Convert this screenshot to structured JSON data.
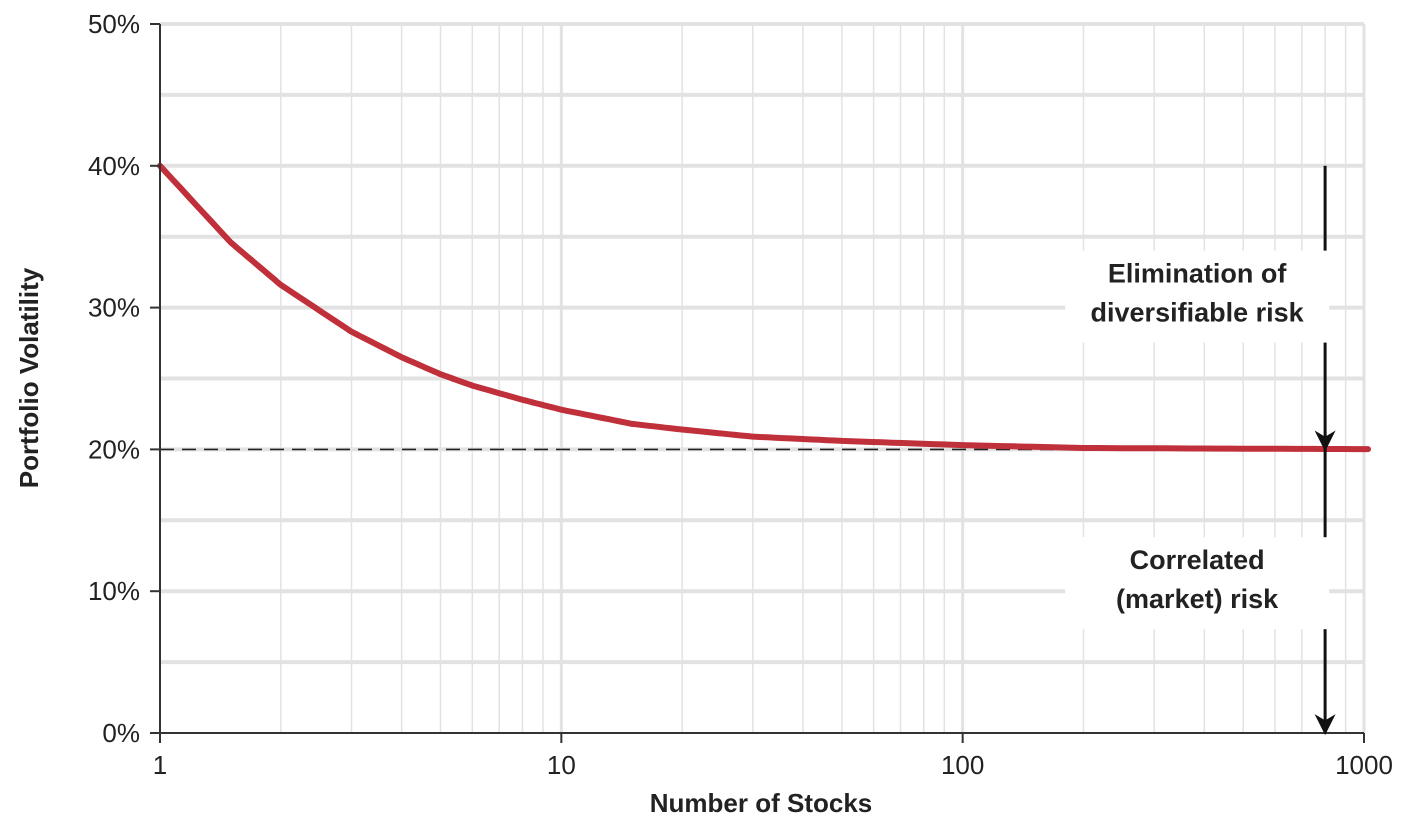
{
  "chart_data": {
    "type": "line",
    "title": "",
    "xlabel": "Number of Stocks",
    "ylabel": "Portfolio Volatility",
    "x_scale": "log",
    "xlim": [
      1,
      1000
    ],
    "ylim": [
      0,
      50
    ],
    "x_ticks": [
      1,
      10,
      100,
      1000
    ],
    "x_tick_labels": [
      "1",
      "10",
      "100",
      "1000"
    ],
    "y_ticks": [
      0,
      10,
      20,
      30,
      40,
      50
    ],
    "y_tick_labels": [
      "0%",
      "10%",
      "20%",
      "30%",
      "40%",
      "50%"
    ],
    "grid": true,
    "series": [
      {
        "color": "#c0303a",
        "x": [
          1,
          1.5,
          2,
          3,
          4,
          5,
          6,
          8,
          10,
          15,
          20,
          30,
          50,
          100,
          200,
          500,
          1000
        ],
        "y": [
          40,
          34.6,
          31.6,
          28.3,
          26.5,
          25.3,
          24.5,
          23.5,
          22.8,
          21.8,
          21.4,
          20.9,
          20.6,
          20.3,
          20.1,
          20.05,
          20.02
        ]
      }
    ],
    "reference_line": {
      "y": 20,
      "style": "dashed"
    },
    "annotations": [
      {
        "line1": "Elimination of",
        "line2": "diversifiable risk",
        "from_y": 40,
        "to_y": 20
      },
      {
        "line1": "Correlated",
        "line2": "(market) risk",
        "from_y": 20,
        "to_y": 0
      }
    ],
    "annotation_x": 800
  },
  "colors": {
    "line": "#c0303a",
    "grid": "#e2e2e2",
    "axis": "#333333",
    "text": "#222222"
  }
}
